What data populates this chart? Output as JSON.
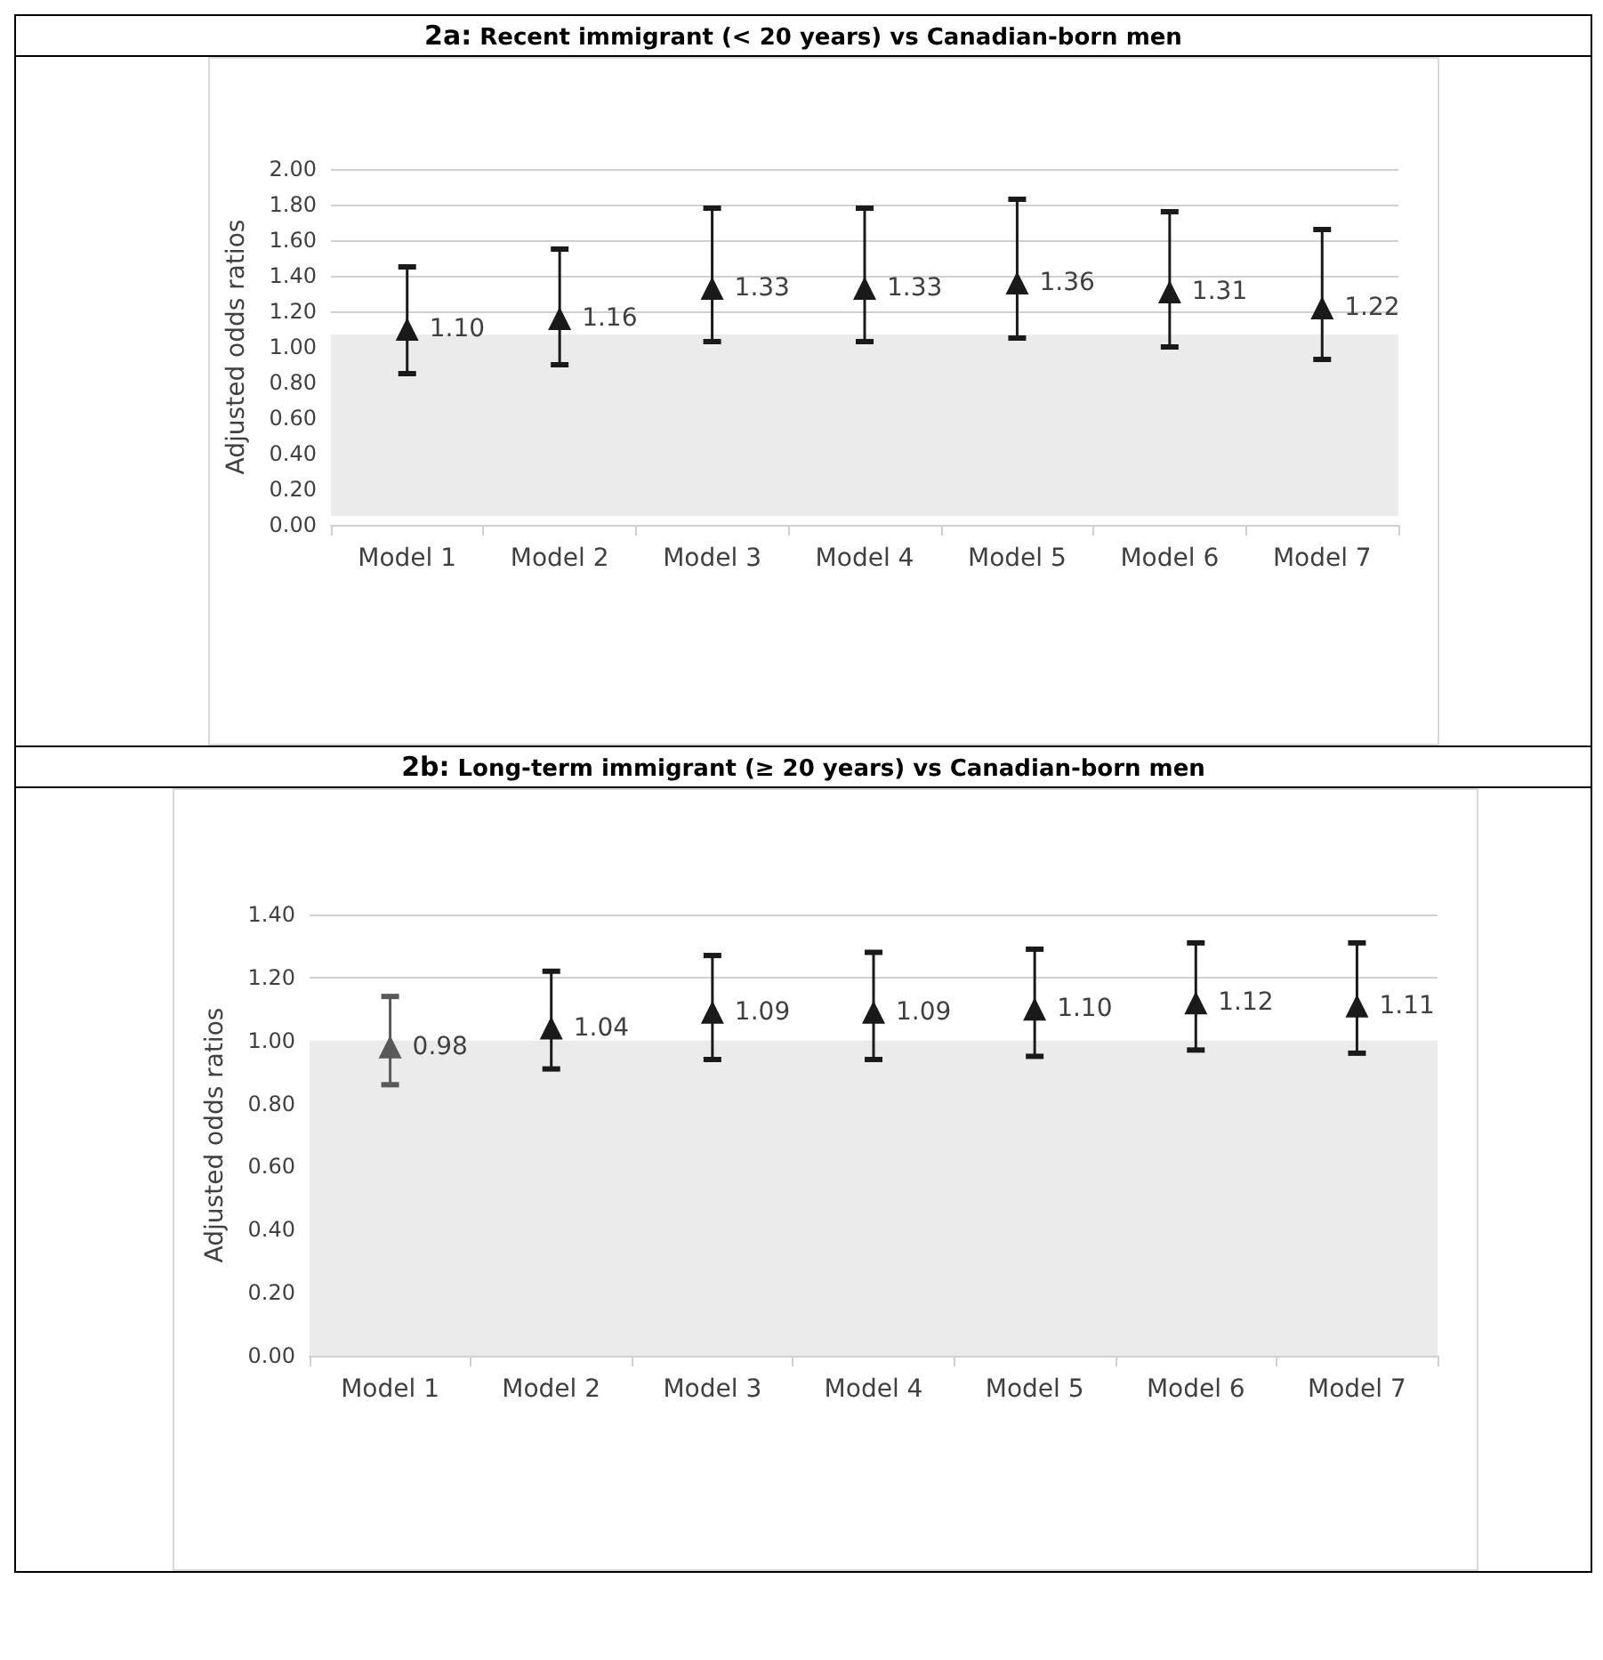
{
  "chart_data": [
    {
      "type": "scatter",
      "title": "2a: Recent immigrant (< 20 years) vs Canadian-born men",
      "ylabel": "Adjusted odds ratios",
      "categories": [
        "Model 1",
        "Model 2",
        "Model 3",
        "Model 4",
        "Model 5",
        "Model 6",
        "Model 7"
      ],
      "series": [
        {
          "color": "#1a1a1a",
          "values": [
            1.1,
            1.16,
            1.33,
            1.33,
            1.36,
            1.31,
            1.22
          ],
          "value_labels": [
            "1.10",
            "1.16",
            "1.33",
            "1.33",
            "1.36",
            "1.31",
            "1.22"
          ],
          "errors": [
            [
              0.85,
              1.45
            ],
            [
              0.9,
              1.55
            ],
            [
              1.03,
              1.78
            ],
            [
              1.03,
              1.78
            ],
            [
              1.05,
              1.83
            ],
            [
              1.0,
              1.76
            ],
            [
              0.93,
              1.66
            ]
          ]
        }
      ],
      "ylim": [
        0,
        2
      ],
      "yticks": [
        {
          "value": 0,
          "label": "0.00"
        },
        {
          "value": 0.2,
          "label": "0.20"
        },
        {
          "value": 0.4,
          "label": "0.40"
        },
        {
          "value": 0.6,
          "label": "0.60"
        },
        {
          "value": 0.8,
          "label": "0.80"
        },
        {
          "value": 1,
          "label": "1.00"
        },
        {
          "value": 1.2,
          "label": "1.20"
        },
        {
          "value": 1.4,
          "label": "1.40"
        },
        {
          "value": 1.6,
          "label": "1.60"
        },
        {
          "value": 1.8,
          "label": "1.80"
        },
        {
          "value": 2,
          "label": "2.00"
        }
      ],
      "bands": [
        {
          "axis": "y",
          "from": 0.05,
          "to": 1.07,
          "color": "#ebebeb"
        }
      ],
      "grid": "y",
      "marker": "triangle"
    },
    {
      "type": "scatter",
      "title": "2b: Long-term immigrant (≥ 20 years) vs Canadian-born men",
      "ylabel": "Adjusted odds ratios",
      "categories": [
        "Model 1",
        "Model 2",
        "Model 3",
        "Model 4",
        "Model 5",
        "Model 6",
        "Model 7"
      ],
      "series": [
        {
          "color": "#1a1a1a",
          "colors": [
            "#595959",
            "#1a1a1a",
            "#1a1a1a",
            "#1a1a1a",
            "#1a1a1a",
            "#1a1a1a",
            "#1a1a1a"
          ],
          "values": [
            0.98,
            1.04,
            1.09,
            1.09,
            1.1,
            1.12,
            1.11
          ],
          "value_labels": [
            "0.98",
            "1.04",
            "1.09",
            "1.09",
            "1.10",
            "1.12",
            "1.11"
          ],
          "errors": [
            [
              0.86,
              1.14
            ],
            [
              0.91,
              1.22
            ],
            [
              0.94,
              1.27
            ],
            [
              0.94,
              1.28
            ],
            [
              0.95,
              1.29
            ],
            [
              0.97,
              1.31
            ],
            [
              0.96,
              1.31
            ]
          ]
        }
      ],
      "ylim": [
        0,
        1.4
      ],
      "yticks": [
        {
          "value": 0,
          "label": "0.00"
        },
        {
          "value": 0.2,
          "label": "0.20"
        },
        {
          "value": 0.4,
          "label": "0.40"
        },
        {
          "value": 0.6,
          "label": "0.60"
        },
        {
          "value": 0.8,
          "label": "0.80"
        },
        {
          "value": 1,
          "label": "1.00"
        },
        {
          "value": 1.2,
          "label": "1.20"
        },
        {
          "value": 1.4,
          "label": "1.40"
        }
      ],
      "bands": [
        {
          "axis": "y",
          "from": 0,
          "to": 1.0,
          "color": "#ebebeb"
        }
      ],
      "grid": "y",
      "marker": "triangle"
    }
  ]
}
